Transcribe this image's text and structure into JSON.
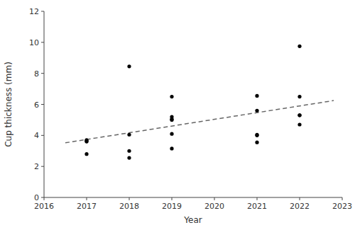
{
  "chart_data": {
    "type": "scatter",
    "xlabel": "Year",
    "ylabel": "Cup thickness (mm)",
    "xlim": [
      2016,
      2023
    ],
    "ylim": [
      0,
      12
    ],
    "xticks": [
      2016,
      2017,
      2018,
      2019,
      2020,
      2021,
      2022,
      2023
    ],
    "yticks": [
      0,
      2,
      4,
      6,
      8,
      10,
      12
    ],
    "grid": false,
    "series": [
      {
        "type": "scatter",
        "color": "#000000",
        "marker": "circle",
        "x": [
          2017,
          2017,
          2017,
          2017,
          2018,
          2018,
          2018,
          2018,
          2019,
          2019,
          2019,
          2019,
          2019,
          2019,
          2021,
          2021,
          2021,
          2021,
          2021,
          2022,
          2022,
          2022,
          2022,
          2022
        ],
        "values": [
          3.6,
          3.65,
          3.7,
          2.8,
          8.45,
          4.05,
          3.0,
          2.55,
          6.5,
          5.2,
          5.05,
          5.0,
          4.1,
          3.15,
          6.55,
          5.6,
          4.05,
          4.0,
          3.55,
          9.75,
          6.5,
          5.3,
          5.3,
          4.7
        ]
      },
      {
        "type": "line",
        "color": "#666666",
        "line_style": "dashed",
        "x": [
          2016.5,
          2022.8
        ],
        "values": [
          3.5222,
          6.2465
        ]
      }
    ]
  }
}
